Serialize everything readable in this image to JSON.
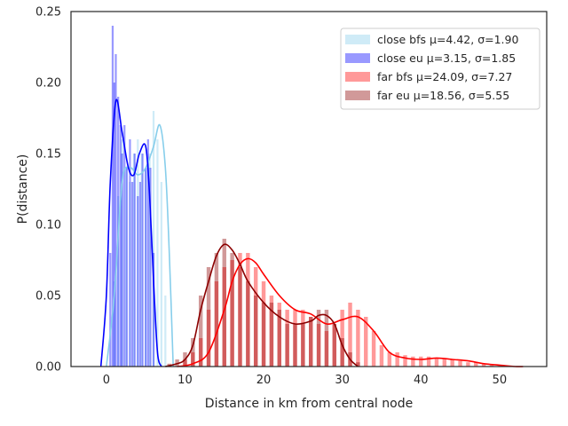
{
  "chart_data": {
    "type": "histogram",
    "title": "",
    "xlabel": "Distance in km from central node",
    "ylabel": "P(distance)",
    "xlim": [
      -4.5,
      56
    ],
    "ylim": [
      0,
      0.25
    ],
    "xticks": [
      "0",
      "10",
      "20",
      "30",
      "40",
      "50"
    ],
    "yticks": [
      "0.00",
      "0.05",
      "0.10",
      "0.15",
      "0.20",
      "0.25"
    ],
    "grid": false,
    "legend_position": "top-right",
    "series": [
      {
        "name": "close bfs μ=4.42, σ=1.90",
        "color": "#87ceeb",
        "bar_alpha": 0.4,
        "bin_width": 0.25,
        "x": [
          1.0,
          1.5,
          2.0,
          2.5,
          3.0,
          3.5,
          4.0,
          4.5,
          5.0,
          5.5,
          6.0,
          6.5,
          7.0,
          7.5
        ],
        "density": [
          0.06,
          0.12,
          0.16,
          0.14,
          0.13,
          0.15,
          0.16,
          0.15,
          0.14,
          0.15,
          0.18,
          0.16,
          0.13,
          0.05
        ],
        "kde_x": [
          0,
          1,
          2,
          3,
          4,
          5,
          6,
          6.8,
          7.5,
          8,
          8.5
        ],
        "kde_y": [
          0.0,
          0.05,
          0.13,
          0.14,
          0.135,
          0.14,
          0.155,
          0.17,
          0.14,
          0.08,
          0.0
        ]
      },
      {
        "name": "close eu μ=3.15, σ=1.85",
        "color": "#0000ff",
        "bar_alpha": 0.4,
        "bin_width": 0.25,
        "x": [
          0.5,
          0.8,
          1.0,
          1.2,
          1.5,
          1.8,
          2.0,
          2.3,
          2.6,
          3.0,
          3.3,
          3.6,
          4.0,
          4.3,
          4.6,
          5.0,
          5.3,
          5.6,
          6.0
        ],
        "density": [
          0.08,
          0.24,
          0.2,
          0.22,
          0.19,
          0.17,
          0.15,
          0.17,
          0.14,
          0.16,
          0.13,
          0.15,
          0.12,
          0.13,
          0.15,
          0.14,
          0.16,
          0.14,
          0.08
        ],
        "kde_x": [
          -0.7,
          0,
          0.5,
          1.2,
          2,
          2.8,
          3.5,
          4.2,
          5,
          5.5,
          6,
          6.5,
          7
        ],
        "kde_y": [
          0.0,
          0.05,
          0.13,
          0.187,
          0.165,
          0.14,
          0.135,
          0.15,
          0.155,
          0.12,
          0.06,
          0.01,
          0.0
        ]
      },
      {
        "name": "far bfs μ=24.09, σ=7.27",
        "color": "#ff0000",
        "bar_alpha": 0.4,
        "bin_width": 0.5,
        "x": [
          10,
          11,
          12,
          13,
          14,
          15,
          16,
          17,
          18,
          19,
          20,
          21,
          22,
          23,
          24,
          25,
          26,
          27,
          28,
          29,
          30,
          31,
          32,
          33,
          34,
          35,
          36,
          37,
          38,
          39,
          40,
          41,
          42,
          43,
          44,
          45,
          46,
          47,
          48,
          49,
          50
        ],
        "density": [
          0.005,
          0.01,
          0.02,
          0.04,
          0.06,
          0.07,
          0.075,
          0.08,
          0.08,
          0.07,
          0.06,
          0.05,
          0.045,
          0.04,
          0.04,
          0.04,
          0.035,
          0.03,
          0.025,
          0.03,
          0.04,
          0.045,
          0.04,
          0.035,
          0.025,
          0.015,
          0.01,
          0.01,
          0.008,
          0.007,
          0.007,
          0.007,
          0.006,
          0.006,
          0.005,
          0.004,
          0.003,
          0.003,
          0.002,
          0.001,
          0.001
        ],
        "kde_x": [
          9,
          11,
          13,
          15,
          16,
          17,
          18,
          19,
          20,
          22,
          24,
          26,
          28,
          30,
          32,
          34,
          36,
          38,
          40,
          42,
          44,
          46,
          48,
          50,
          52,
          53
        ],
        "kde_y": [
          0.0,
          0.002,
          0.01,
          0.04,
          0.06,
          0.072,
          0.076,
          0.073,
          0.065,
          0.05,
          0.04,
          0.037,
          0.03,
          0.033,
          0.035,
          0.025,
          0.01,
          0.006,
          0.005,
          0.006,
          0.005,
          0.004,
          0.002,
          0.001,
          0.0,
          0.0
        ]
      },
      {
        "name": "far eu μ=18.56, σ=5.55",
        "color": "#8b0000",
        "bar_alpha": 0.4,
        "bin_width": 0.5,
        "x": [
          8,
          9,
          10,
          11,
          12,
          13,
          14,
          15,
          16,
          17,
          18,
          19,
          20,
          21,
          22,
          23,
          24,
          25,
          26,
          27,
          28,
          29,
          30,
          31,
          32
        ],
        "density": [
          0.002,
          0.005,
          0.01,
          0.02,
          0.05,
          0.07,
          0.08,
          0.09,
          0.08,
          0.07,
          0.06,
          0.05,
          0.045,
          0.045,
          0.04,
          0.03,
          0.03,
          0.03,
          0.035,
          0.04,
          0.04,
          0.03,
          0.02,
          0.01,
          0.003
        ],
        "kde_x": [
          7.5,
          9,
          10,
          11,
          12,
          13,
          14,
          15,
          16,
          17,
          18,
          20,
          22,
          24,
          26,
          27,
          28,
          29,
          30,
          31,
          32
        ],
        "kde_y": [
          0.0,
          0.002,
          0.005,
          0.015,
          0.04,
          0.06,
          0.078,
          0.086,
          0.082,
          0.072,
          0.06,
          0.045,
          0.035,
          0.03,
          0.032,
          0.036,
          0.036,
          0.03,
          0.015,
          0.005,
          0.0
        ]
      }
    ]
  }
}
